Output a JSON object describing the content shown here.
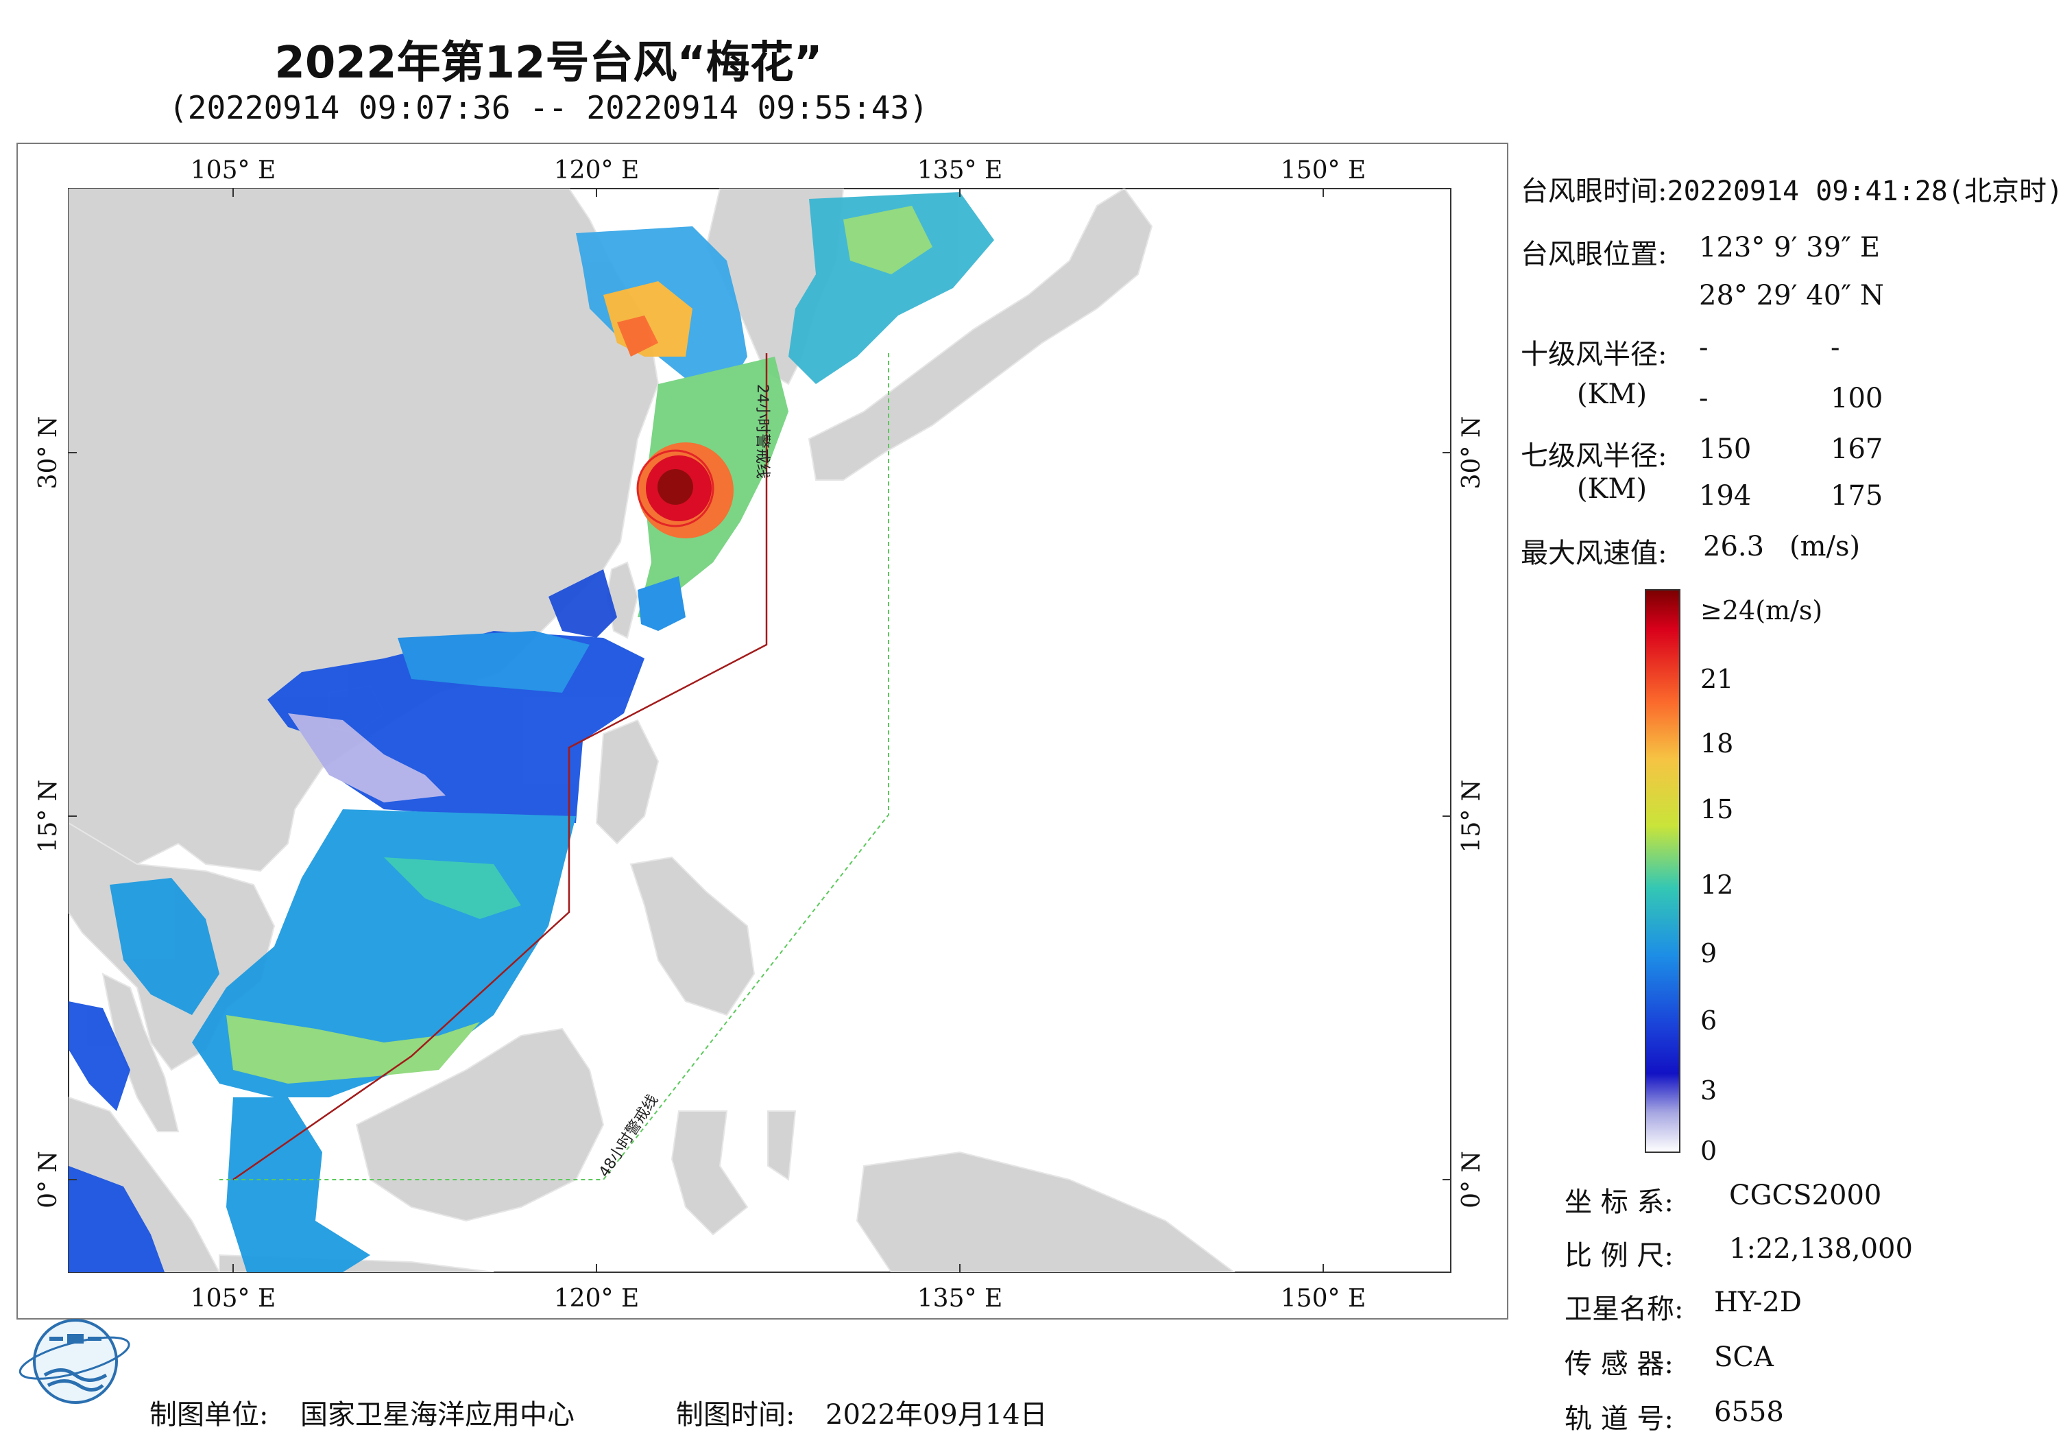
{
  "title": "2022年第12号台风“梅花”",
  "subtitle": "(20220914 09:07:36 -- 20220914 09:55:43)",
  "map": {
    "lon_labels": [
      "105° E",
      "120° E",
      "135° E",
      "150° E"
    ],
    "lat_labels": [
      "30° N",
      "15° N",
      "0° N"
    ],
    "warning_24h_label": "24小时警戒线",
    "warning_48h_label": "48小时警戒线",
    "colors": {
      "land": "#d3d3d3",
      "ocean": "#ffffff",
      "warning_24h": "#a31a1a",
      "warning_48h": "#5cc95c"
    }
  },
  "info": {
    "eye_time_label": "台风眼时间:",
    "eye_time_value": "20220914 09:41:28(北京时)",
    "eye_pos_label": "台风眼位置:",
    "eye_lon": "123° 9′ 39″ E",
    "eye_lat": "28° 29′ 40″ N",
    "r10_label": "十级风半径:",
    "r10_unit": "(KM)",
    "r10_values": [
      "-",
      "-",
      "-",
      "100"
    ],
    "r7_label": "七级风半径:",
    "r7_unit": "(KM)",
    "r7_values": [
      "150",
      "167",
      "194",
      "175"
    ],
    "max_wind_label": "最大风速值:",
    "max_wind_value": "26.3",
    "max_wind_unit": "(m/s)"
  },
  "colorbar": {
    "labels": [
      "≥24(m/s)",
      "21",
      "18",
      "15",
      "12",
      "9",
      "6",
      "3",
      "0"
    ],
    "stops": [
      "#8b0000",
      "#e31a1c",
      "#fd8d3c",
      "#f4d03f",
      "#b5e61d",
      "#2ec4a6",
      "#1e9be0",
      "#1f4fd9",
      "#1010c8",
      "#b9b9e8",
      "#ffffff"
    ]
  },
  "meta": {
    "crs_label": "坐 标 系:",
    "crs_value": "CGCS2000",
    "scale_label": "比 例 尺:",
    "scale_value": "1:22,138,000",
    "sat_label": "卫星名称:",
    "sat_value": "HY-2D",
    "sensor_label": "传 感 器:",
    "sensor_value": "SCA",
    "orbit_label": "轨 道 号:",
    "orbit_value": "6558"
  },
  "footer": {
    "unit_label": "制图单位:",
    "unit_value": "国家卫星海洋应用中心",
    "time_label": "制图时间:",
    "time_value": "2022年09月14日"
  },
  "logo": {
    "icon": "nsoas-logo-icon"
  }
}
